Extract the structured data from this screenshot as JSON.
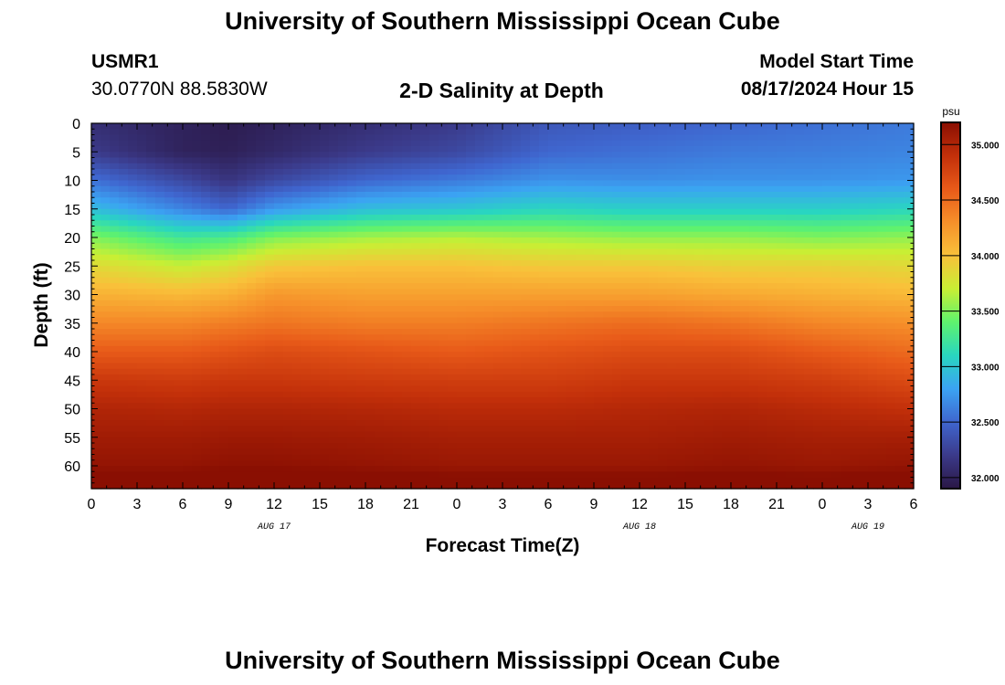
{
  "header": {
    "title": "University of Southern Mississippi Ocean Cube",
    "station_id": "USMR1",
    "coords": "30.0770N  88.5830W",
    "plot_title": "2-D Salinity at Depth",
    "model_label": "Model Start Time",
    "model_time": "08/17/2024 Hour 15"
  },
  "footer": {
    "title": "University of Southern Mississippi Ocean Cube"
  },
  "chart_data": {
    "type": "heatmap",
    "title": "2-D Salinity at Depth",
    "xlabel": "Forecast Time(Z)",
    "ylabel": "Depth (ft)",
    "x_ticks": [
      "0",
      "3",
      "6",
      "9",
      "12",
      "15",
      "18",
      "21",
      "0",
      "3",
      "6",
      "9",
      "12",
      "15",
      "18",
      "21",
      "0",
      "3",
      "6"
    ],
    "x_range_hours": [
      0,
      54
    ],
    "date_labels": [
      {
        "label": "AUG 17",
        "hour": 12
      },
      {
        "label": "AUG 18",
        "hour": 36
      },
      {
        "label": "AUG 19",
        "hour": 51
      }
    ],
    "y_ticks": [
      "0",
      "5",
      "10",
      "15",
      "20",
      "25",
      "30",
      "35",
      "40",
      "45",
      "50",
      "55",
      "60"
    ],
    "y_range": [
      0,
      64
    ],
    "y_inverted": true,
    "colorbar": {
      "unit": "psu",
      "range": [
        31.9,
        35.2
      ],
      "ticks": [
        "32.000",
        "32.500",
        "33.000",
        "33.500",
        "34.000",
        "34.500",
        "35.000"
      ],
      "colors": [
        "#2a1745",
        "#3b3a8a",
        "#3f66cf",
        "#3ba3f3",
        "#29d6c0",
        "#5ef26e",
        "#c8ef34",
        "#f9c13a",
        "#f6902a",
        "#e85a19",
        "#c3300a",
        "#8a0f02"
      ]
    },
    "hours": [
      0,
      6,
      9,
      12,
      18,
      24,
      30,
      36,
      42,
      48,
      54
    ],
    "depths": [
      0,
      5,
      10,
      15,
      20,
      25,
      30,
      35,
      40,
      45,
      50,
      55,
      60,
      64
    ],
    "salinity": [
      [
        32.1,
        32.0,
        31.95,
        32.0,
        32.1,
        32.2,
        32.4,
        32.45,
        32.5,
        32.55,
        32.6
      ],
      [
        32.2,
        32.0,
        31.98,
        32.05,
        32.2,
        32.3,
        32.5,
        32.55,
        32.6,
        32.62,
        32.65
      ],
      [
        32.55,
        32.3,
        32.15,
        32.3,
        32.5,
        32.6,
        32.72,
        32.7,
        32.72,
        32.72,
        32.75
      ],
      [
        32.95,
        32.65,
        32.5,
        32.75,
        32.95,
        33.0,
        33.1,
        33.05,
        33.05,
        33.05,
        33.1
      ],
      [
        33.5,
        33.25,
        33.3,
        33.5,
        33.6,
        33.65,
        33.6,
        33.55,
        33.55,
        33.5,
        33.55
      ],
      [
        33.85,
        33.7,
        33.8,
        33.95,
        34.0,
        34.0,
        33.95,
        33.95,
        33.9,
        33.9,
        33.85
      ],
      [
        34.1,
        34.05,
        34.1,
        34.25,
        34.2,
        34.2,
        34.2,
        34.2,
        34.15,
        34.1,
        34.05
      ],
      [
        34.35,
        34.35,
        34.4,
        34.45,
        34.4,
        34.4,
        34.45,
        34.5,
        34.45,
        34.35,
        34.3
      ],
      [
        34.6,
        34.6,
        34.65,
        34.7,
        34.65,
        34.6,
        34.65,
        34.7,
        34.7,
        34.6,
        34.5
      ],
      [
        34.85,
        34.82,
        34.85,
        34.85,
        34.82,
        34.8,
        34.8,
        34.85,
        34.85,
        34.8,
        34.7
      ],
      [
        35.0,
        34.98,
        35.0,
        35.0,
        34.98,
        34.95,
        34.95,
        34.98,
        35.0,
        34.95,
        34.9
      ],
      [
        35.08,
        35.08,
        35.1,
        35.1,
        35.08,
        35.05,
        35.05,
        35.05,
        35.08,
        35.05,
        35.05
      ],
      [
        35.15,
        35.15,
        35.18,
        35.18,
        35.15,
        35.12,
        35.12,
        35.12,
        35.15,
        35.12,
        35.15
      ],
      [
        35.35,
        35.35,
        35.35,
        35.35,
        35.35,
        35.3,
        35.3,
        35.3,
        35.3,
        35.3,
        35.35
      ]
    ]
  }
}
